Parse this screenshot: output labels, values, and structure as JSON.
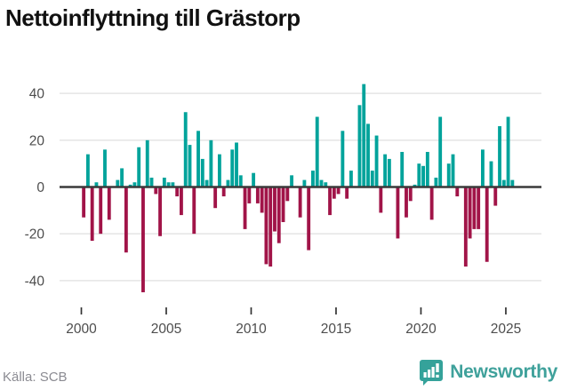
{
  "title": "Nettoinflyttning till Grästorp",
  "source_label": "Källa: SCB",
  "logo": {
    "text": "Newsworthy"
  },
  "colors": {
    "positive": "#00a39b",
    "negative": "#a11448",
    "zero_line": "#3a3a3a",
    "gridline": "#e4e4e4",
    "axis_text": "#4d4d4d",
    "title_text": "#111111",
    "source_text": "#8b8b92",
    "logo_teal": "#3fa19b"
  },
  "chart_data": {
    "type": "bar",
    "title": "Nettoinflyttning till Grästorp",
    "xlabel": "",
    "ylabel": "",
    "frequency": "quarterly",
    "x_start": "2000-Q1",
    "x_end": "2025-Q2",
    "x_tick_labels": [
      "2000",
      "2005",
      "2010",
      "2015",
      "2020",
      "2025"
    ],
    "y_ticks": [
      40,
      20,
      0,
      -20,
      -40
    ],
    "ylim": [
      -48,
      46
    ],
    "grid": "horizontal",
    "legend": "none",
    "series": [
      {
        "name": "Nettoinflyttning",
        "values": [
          -13,
          14,
          -23,
          2,
          -20,
          16,
          -14,
          0,
          3,
          8,
          -28,
          1,
          2,
          17,
          -45,
          20,
          4,
          -3,
          -21,
          4,
          2,
          2,
          -4,
          -12,
          32,
          18,
          -20,
          24,
          12,
          3,
          20,
          -9,
          14,
          -4,
          3,
          16,
          19,
          5,
          -18,
          -7,
          6,
          -7,
          -11,
          -33,
          -34,
          -19,
          -24,
          -15,
          -6,
          5,
          0,
          -13,
          3,
          -27,
          7,
          30,
          3,
          2,
          -12,
          -5,
          -3,
          24,
          -5,
          7,
          0,
          35,
          44,
          27,
          7,
          22,
          -11,
          14,
          12,
          0,
          -22,
          15,
          -13,
          -6,
          1,
          10,
          9,
          15,
          -14,
          4,
          30,
          0,
          10,
          14,
          -4,
          0,
          -34,
          -22,
          -18,
          -18,
          16,
          -32,
          11,
          -8,
          26,
          3,
          30,
          3
        ]
      }
    ]
  }
}
